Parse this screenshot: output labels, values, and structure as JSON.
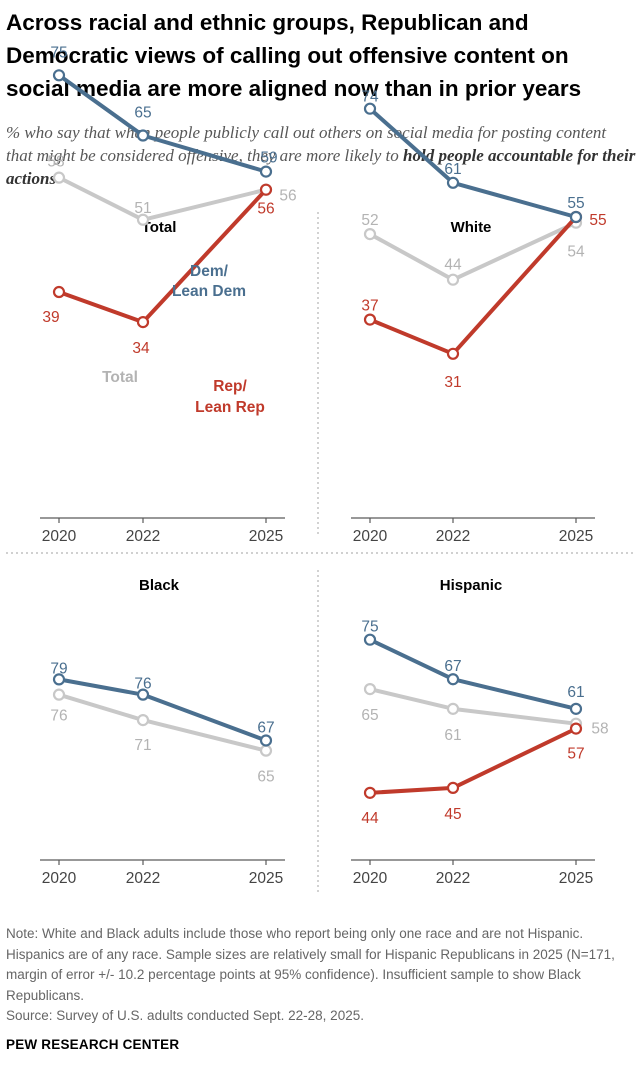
{
  "title": "Across racial and ethnic groups, Republican and Democratic views of calling out offensive content on social media are more aligned now than in prior years",
  "subtitle_plain": "% who say that when people publicly call out others on social media for posting content that might be considered offensive, they are more likely to",
  "subtitle_bold": "hold people accountable for their actions",
  "note": "Note: White and Black adults include those who report being only one race and are not Hispanic. Hispanics are of any race. Sample sizes are relatively small for Hispanic Republicans in 2025 (N=171, margin of error +/- 10.2 percentage points at 95% confidence). Insufficient sample to show Black Republicans.",
  "source": "Source: Survey of U.S. adults conducted Sept. 22-28, 2025.",
  "brand": "PEW RESEARCH CENTER",
  "colors": {
    "dem": "#4a6f8f",
    "rep": "#c03a2b",
    "total": "#c8c8c8",
    "total_label": "#b3b3b3",
    "axis": "#5a5a5a",
    "divider": "#b5b5b5"
  },
  "chart_data": [
    {
      "type": "line",
      "title": "Total",
      "x": [
        "2020",
        "2022",
        "2025"
      ],
      "ylim": [
        0,
        100
      ],
      "series": [
        {
          "key": "dem",
          "name": "Dem/ Lean Dem",
          "values": [
            75,
            65,
            59
          ]
        },
        {
          "key": "total",
          "name": "Total",
          "values": [
            58,
            51,
            56
          ]
        },
        {
          "key": "rep",
          "name": "Rep/ Lean Rep",
          "values": [
            39,
            34,
            56
          ]
        }
      ]
    },
    {
      "type": "line",
      "title": "White",
      "x": [
        "2020",
        "2022",
        "2025"
      ],
      "ylim": [
        0,
        100
      ],
      "series": [
        {
          "key": "dem",
          "values": [
            74,
            61,
            55
          ]
        },
        {
          "key": "total",
          "values": [
            52,
            44,
            54
          ]
        },
        {
          "key": "rep",
          "values": [
            37,
            31,
            55
          ]
        }
      ]
    },
    {
      "type": "line",
      "title": "Black",
      "x": [
        "2020",
        "2022",
        "2025"
      ],
      "ylim": [
        0,
        100
      ],
      "series": [
        {
          "key": "dem",
          "values": [
            79,
            76,
            67
          ]
        },
        {
          "key": "total",
          "values": [
            76,
            71,
            65
          ]
        }
      ]
    },
    {
      "type": "line",
      "title": "Hispanic",
      "x": [
        "2020",
        "2022",
        "2025"
      ],
      "ylim": [
        0,
        100
      ],
      "series": [
        {
          "key": "dem",
          "values": [
            75,
            67,
            61
          ]
        },
        {
          "key": "total",
          "values": [
            65,
            61,
            58
          ]
        },
        {
          "key": "rep",
          "values": [
            44,
            45,
            57
          ]
        }
      ]
    }
  ]
}
